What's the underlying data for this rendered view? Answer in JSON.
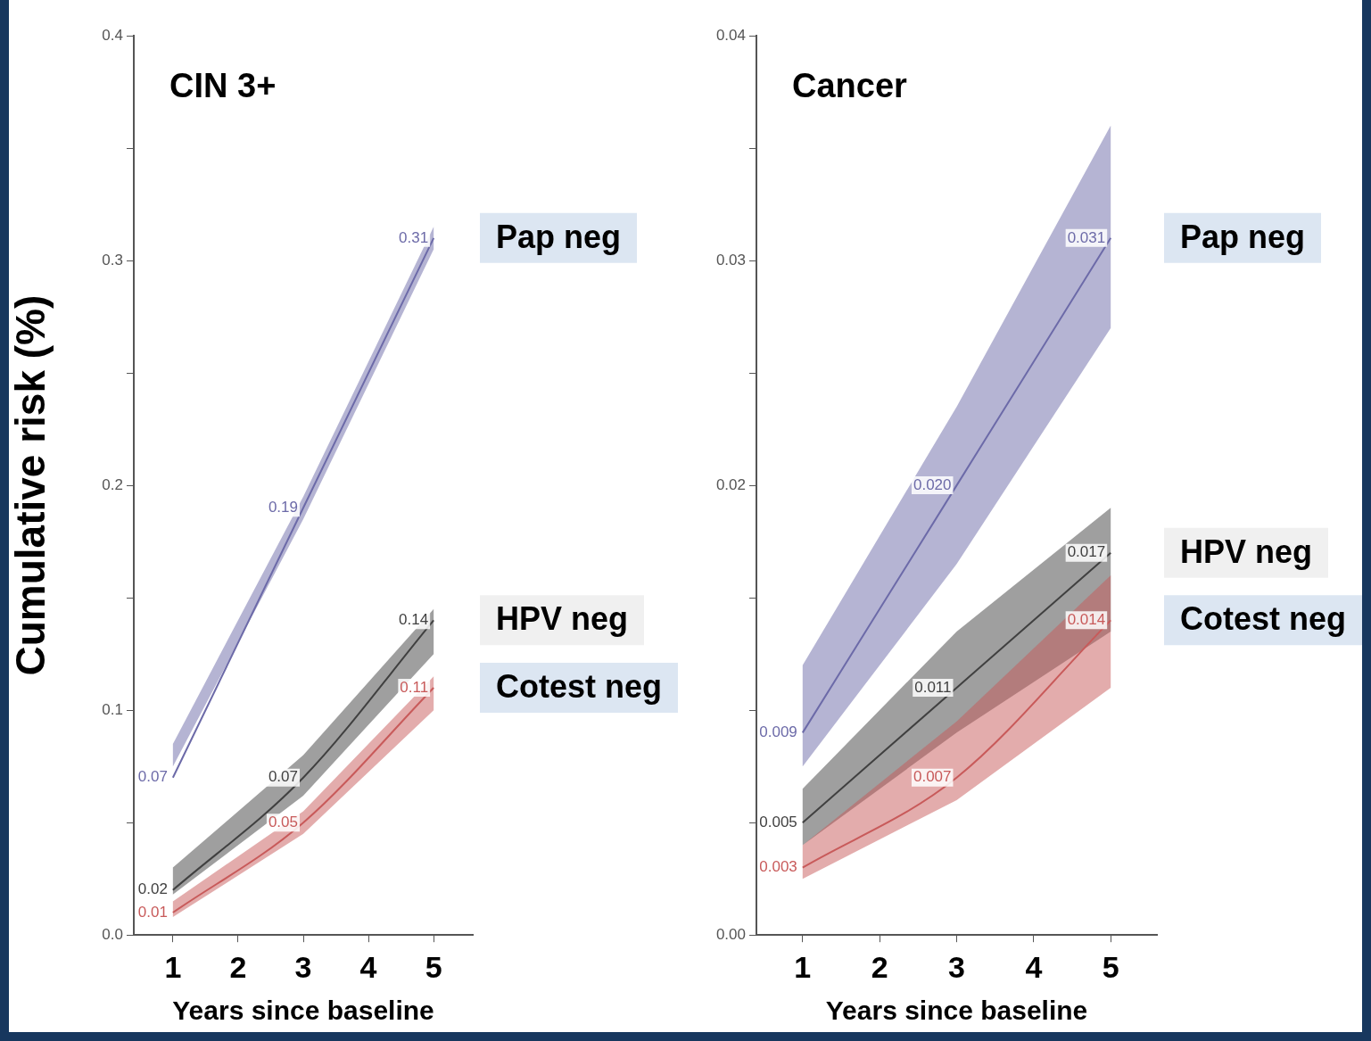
{
  "chart_data": [
    {
      "type": "line",
      "title": "CIN 3+",
      "xlabel": "Years since baseline",
      "ylabel": "Cumulative risk (%)",
      "x": [
        1,
        3,
        5
      ],
      "xlim": [
        0.4,
        5.6
      ],
      "xticks": [
        1,
        2,
        3,
        4,
        5
      ],
      "ylim": [
        0,
        0.4
      ],
      "yticks": [
        {
          "value": 0,
          "label": "0.0"
        },
        {
          "value": 0.05,
          "label": null
        },
        0.1,
        {
          "value": 0.15,
          "label": null
        },
        0.2,
        {
          "value": 0.25,
          "label": null
        },
        0.3,
        {
          "value": 0.35,
          "label": null
        },
        0.4
      ],
      "grid": false,
      "legend": false,
      "marker": "none",
      "data_labels": true,
      "series": [
        {
          "name": "Pap neg",
          "color": "#6c6aa8",
          "values": [
            0.07,
            0.19,
            0.31
          ],
          "lower": [
            0.075,
            0.185,
            0.305
          ],
          "upper": [
            0.085,
            0.195,
            0.315
          ]
        },
        {
          "name": "HPV neg",
          "color": "#404040",
          "values": [
            0.02,
            0.07,
            0.14
          ],
          "lower": [
            0.018,
            0.062,
            0.125
          ],
          "upper": [
            0.03,
            0.08,
            0.145
          ]
        },
        {
          "name": "Cotest neg",
          "color": "#c85a5a",
          "values": [
            0.01,
            0.05,
            0.11
          ],
          "lower": [
            0.008,
            0.045,
            0.1
          ],
          "upper": [
            0.015,
            0.055,
            0.115
          ]
        }
      ]
    },
    {
      "type": "line",
      "title": "Cancer",
      "xlabel": "Years since baseline",
      "x": [
        1,
        3,
        5
      ],
      "xlim": [
        0.4,
        5.6
      ],
      "xticks": [
        1,
        2,
        3,
        4,
        5
      ],
      "ylim": [
        0,
        0.04
      ],
      "yticks": [
        {
          "value": 0,
          "label": "0.00"
        },
        {
          "value": 0.005,
          "label": null
        },
        {
          "value": 0.01,
          "label": null
        },
        {
          "value": 0.015,
          "label": null
        },
        0.02,
        {
          "value": 0.025,
          "label": null
        },
        0.03,
        {
          "value": 0.035,
          "label": null
        },
        0.04
      ],
      "grid": false,
      "legend": false,
      "marker": "none",
      "data_labels": true,
      "series": [
        {
          "name": "Pap neg",
          "color": "#6c6aa8",
          "values": [
            0.009,
            0.02,
            0.031
          ],
          "value_labels": [
            "0.009",
            "0.020",
            "0.031"
          ],
          "lower": [
            0.0075,
            0.0165,
            0.027
          ],
          "upper": [
            0.012,
            0.0235,
            0.036
          ]
        },
        {
          "name": "HPV neg",
          "color": "#404040",
          "values": [
            0.005,
            0.011,
            0.017
          ],
          "lower": [
            0.004,
            0.009,
            0.0135
          ],
          "upper": [
            0.0065,
            0.0135,
            0.019
          ]
        },
        {
          "name": "Cotest neg",
          "color": "#c85a5a",
          "values": [
            0.003,
            0.007,
            0.014
          ],
          "lower": [
            0.0025,
            0.006,
            0.011
          ],
          "upper": [
            0.004,
            0.0095,
            0.016
          ]
        }
      ]
    }
  ]
}
